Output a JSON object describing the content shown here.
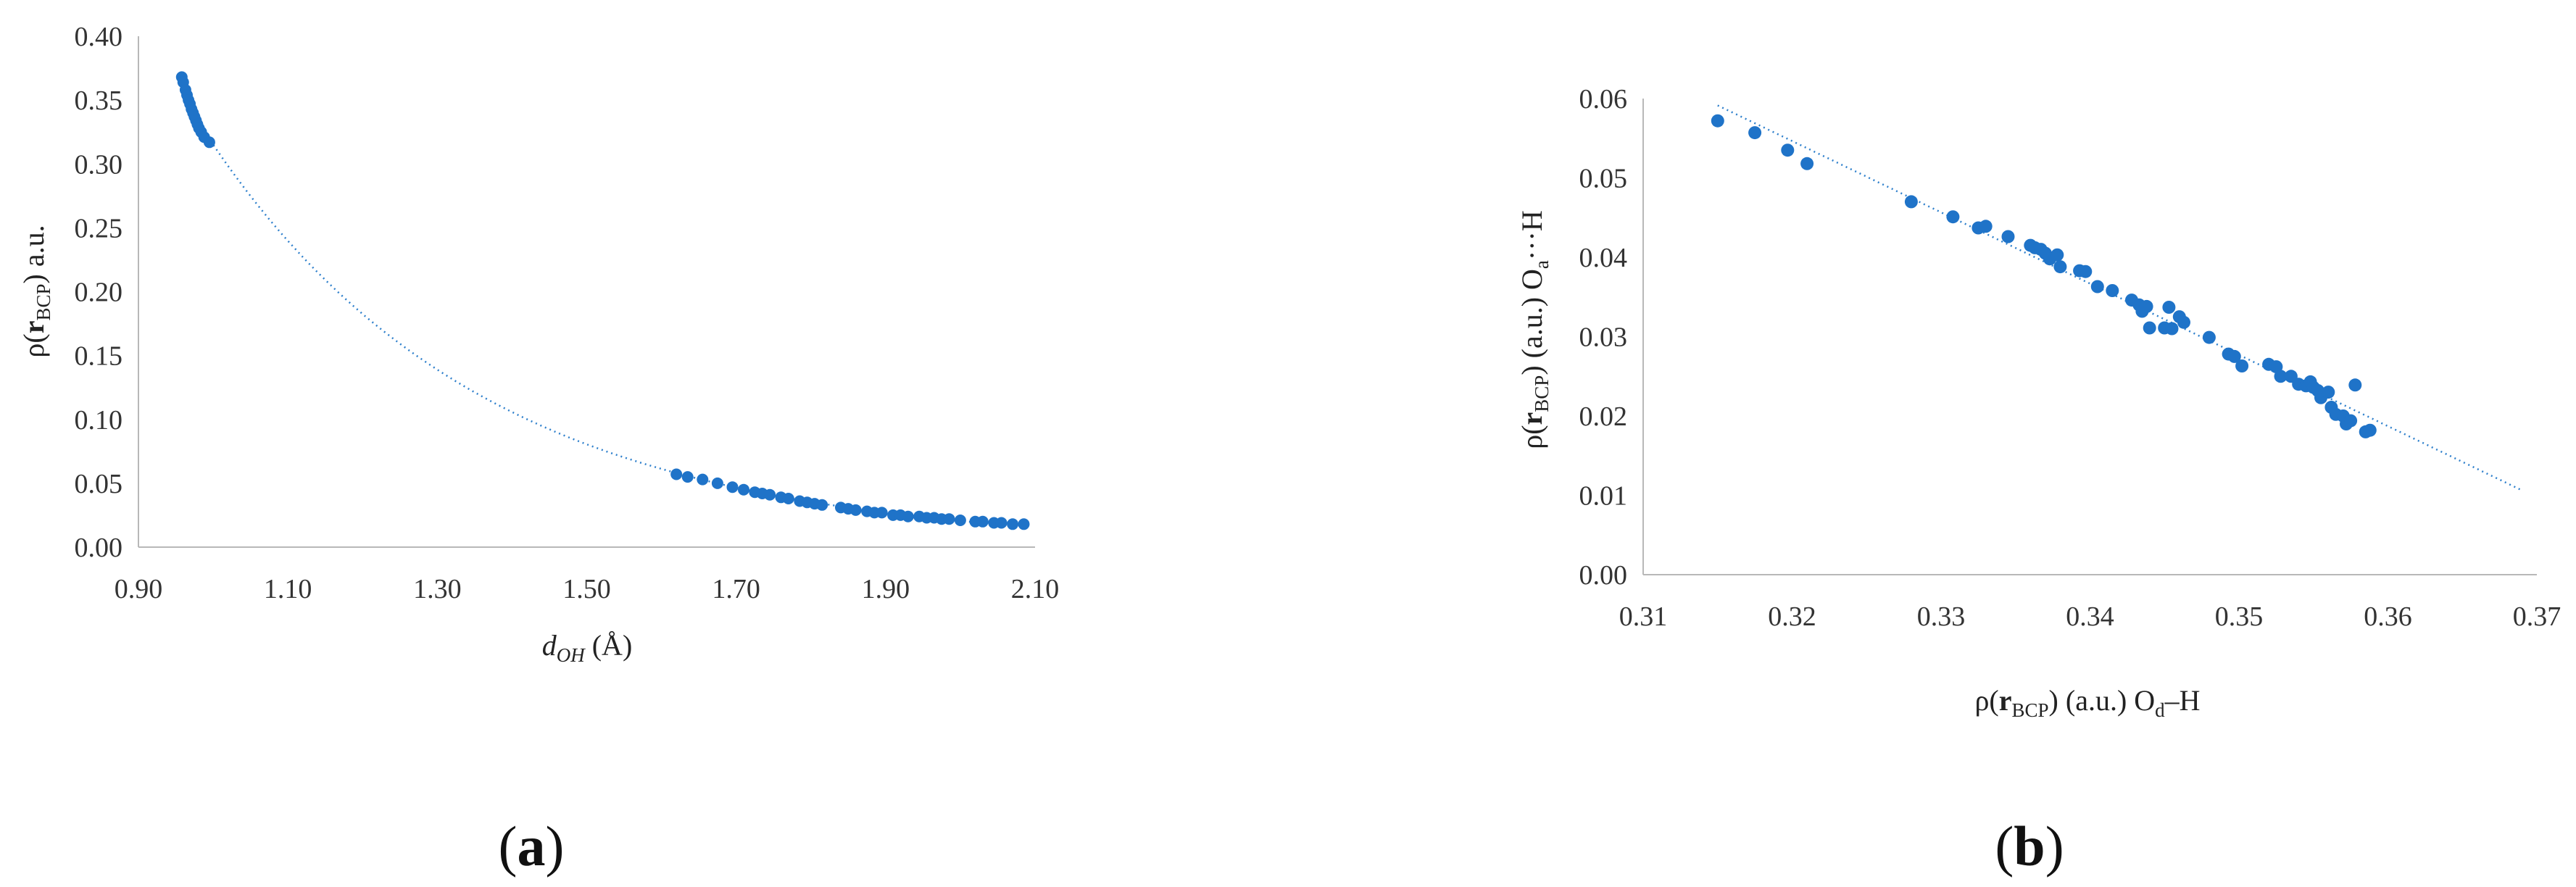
{
  "chart_data": [
    {
      "type": "scatter",
      "panel_label": {
        "open": "(",
        "letter": "a",
        "close": ")"
      },
      "xlabel": {
        "main": "d",
        "sub": "OH",
        "rest": " (Å)"
      },
      "ylabel": {
        "pre": "ρ(",
        "bold": "r",
        "sub": "BCP",
        "post": ") a.u."
      },
      "xlim": [
        0.9,
        2.1
      ],
      "ylim": [
        0.0,
        0.4
      ],
      "xticks": [
        "0.90",
        "1.10",
        "1.30",
        "1.50",
        "1.70",
        "1.90",
        "2.10"
      ],
      "yticks": [
        "0.00",
        "0.05",
        "0.10",
        "0.15",
        "0.20",
        "0.25",
        "0.30",
        "0.35",
        "0.40"
      ],
      "grid": false,
      "marker_color": "#1f73c8",
      "trendline": {
        "kind": "exponential",
        "style": "dotted",
        "x_start": 0.96,
        "x_end": 2.09
      },
      "points": [
        [
          0.958,
          0.368
        ],
        [
          0.96,
          0.364
        ],
        [
          0.963,
          0.358
        ],
        [
          0.965,
          0.354
        ],
        [
          0.967,
          0.35
        ],
        [
          0.969,
          0.347
        ],
        [
          0.971,
          0.343
        ],
        [
          0.973,
          0.34
        ],
        [
          0.975,
          0.337
        ],
        [
          0.977,
          0.334
        ],
        [
          0.979,
          0.331
        ],
        [
          0.981,
          0.328
        ],
        [
          0.984,
          0.325
        ],
        [
          0.988,
          0.321
        ],
        [
          0.995,
          0.317
        ],
        [
          1.62,
          0.057
        ],
        [
          1.635,
          0.055
        ],
        [
          1.655,
          0.053
        ],
        [
          1.675,
          0.05
        ],
        [
          1.695,
          0.047
        ],
        [
          1.71,
          0.045
        ],
        [
          1.725,
          0.043
        ],
        [
          1.735,
          0.042
        ],
        [
          1.745,
          0.041
        ],
        [
          1.76,
          0.039
        ],
        [
          1.77,
          0.038
        ],
        [
          1.785,
          0.036
        ],
        [
          1.795,
          0.035
        ],
        [
          1.805,
          0.034
        ],
        [
          1.815,
          0.033
        ],
        [
          1.84,
          0.031
        ],
        [
          1.85,
          0.03
        ],
        [
          1.86,
          0.029
        ],
        [
          1.875,
          0.028
        ],
        [
          1.885,
          0.027
        ],
        [
          1.895,
          0.027
        ],
        [
          1.91,
          0.025
        ],
        [
          1.92,
          0.025
        ],
        [
          1.93,
          0.024
        ],
        [
          1.945,
          0.024
        ],
        [
          1.955,
          0.023
        ],
        [
          1.965,
          0.023
        ],
        [
          1.975,
          0.022
        ],
        [
          1.985,
          0.022
        ],
        [
          2.0,
          0.021
        ],
        [
          2.02,
          0.02
        ],
        [
          2.03,
          0.02
        ],
        [
          2.045,
          0.019
        ],
        [
          2.055,
          0.019
        ],
        [
          2.07,
          0.018
        ],
        [
          2.085,
          0.018
        ]
      ]
    },
    {
      "type": "scatter",
      "panel_label": {
        "open": "(",
        "letter": "b",
        "close": ")"
      },
      "xlabel": {
        "pre": "ρ(",
        "bold": "r",
        "sub": "BCP",
        "mid": ") (a.u.)  O",
        "sub2": "d",
        "post": "–H"
      },
      "ylabel": {
        "pre": "ρ(",
        "bold": "r",
        "sub": "BCP",
        "mid": ") (a.u.)  O",
        "sub2": "a",
        "post": "···H"
      },
      "xlim": [
        0.31,
        0.37
      ],
      "ylim": [
        0.0,
        0.06
      ],
      "xticks": [
        "0.31",
        "0.32",
        "0.33",
        "0.34",
        "0.35",
        "0.36",
        "0.37"
      ],
      "yticks": [
        "0.00",
        "0.01",
        "0.02",
        "0.03",
        "0.04",
        "0.05",
        "0.06"
      ],
      "grid": false,
      "marker_color": "#1f73c8",
      "trendline": {
        "kind": "linear",
        "style": "dotted",
        "x_start": 0.315,
        "x_end": 0.369
      },
      "points": [
        [
          0.315,
          0.0572
        ],
        [
          0.3175,
          0.0557
        ],
        [
          0.3197,
          0.0535
        ],
        [
          0.321,
          0.0518
        ],
        [
          0.328,
          0.047
        ],
        [
          0.3308,
          0.0451
        ],
        [
          0.3325,
          0.0437
        ],
        [
          0.333,
          0.0439
        ],
        [
          0.3345,
          0.0426
        ],
        [
          0.336,
          0.0415
        ],
        [
          0.3363,
          0.0412
        ],
        [
          0.3367,
          0.041
        ],
        [
          0.337,
          0.0405
        ],
        [
          0.3373,
          0.0398
        ],
        [
          0.3378,
          0.0403
        ],
        [
          0.338,
          0.0388
        ],
        [
          0.3393,
          0.0383
        ],
        [
          0.3397,
          0.0382
        ],
        [
          0.3405,
          0.0363
        ],
        [
          0.3415,
          0.0358
        ],
        [
          0.3428,
          0.0346
        ],
        [
          0.3433,
          0.034
        ],
        [
          0.3435,
          0.0332
        ],
        [
          0.3438,
          0.0338
        ],
        [
          0.344,
          0.0311
        ],
        [
          0.345,
          0.0311
        ],
        [
          0.3453,
          0.0337
        ],
        [
          0.3455,
          0.031
        ],
        [
          0.346,
          0.0325
        ],
        [
          0.3463,
          0.0318
        ],
        [
          0.348,
          0.0299
        ],
        [
          0.3493,
          0.0278
        ],
        [
          0.3497,
          0.0275
        ],
        [
          0.3502,
          0.0263
        ],
        [
          0.352,
          0.0265
        ],
        [
          0.3525,
          0.0262
        ],
        [
          0.3528,
          0.025
        ],
        [
          0.3535,
          0.025
        ],
        [
          0.354,
          0.024
        ],
        [
          0.3545,
          0.0238
        ],
        [
          0.3548,
          0.0243
        ],
        [
          0.355,
          0.0236
        ],
        [
          0.3553,
          0.0232
        ],
        [
          0.3555,
          0.0223
        ],
        [
          0.356,
          0.023
        ],
        [
          0.3562,
          0.0211
        ],
        [
          0.3565,
          0.0202
        ],
        [
          0.357,
          0.02
        ],
        [
          0.3572,
          0.019
        ],
        [
          0.3575,
          0.0194
        ],
        [
          0.3578,
          0.0239
        ],
        [
          0.3585,
          0.018
        ],
        [
          0.3588,
          0.0182
        ]
      ]
    }
  ]
}
